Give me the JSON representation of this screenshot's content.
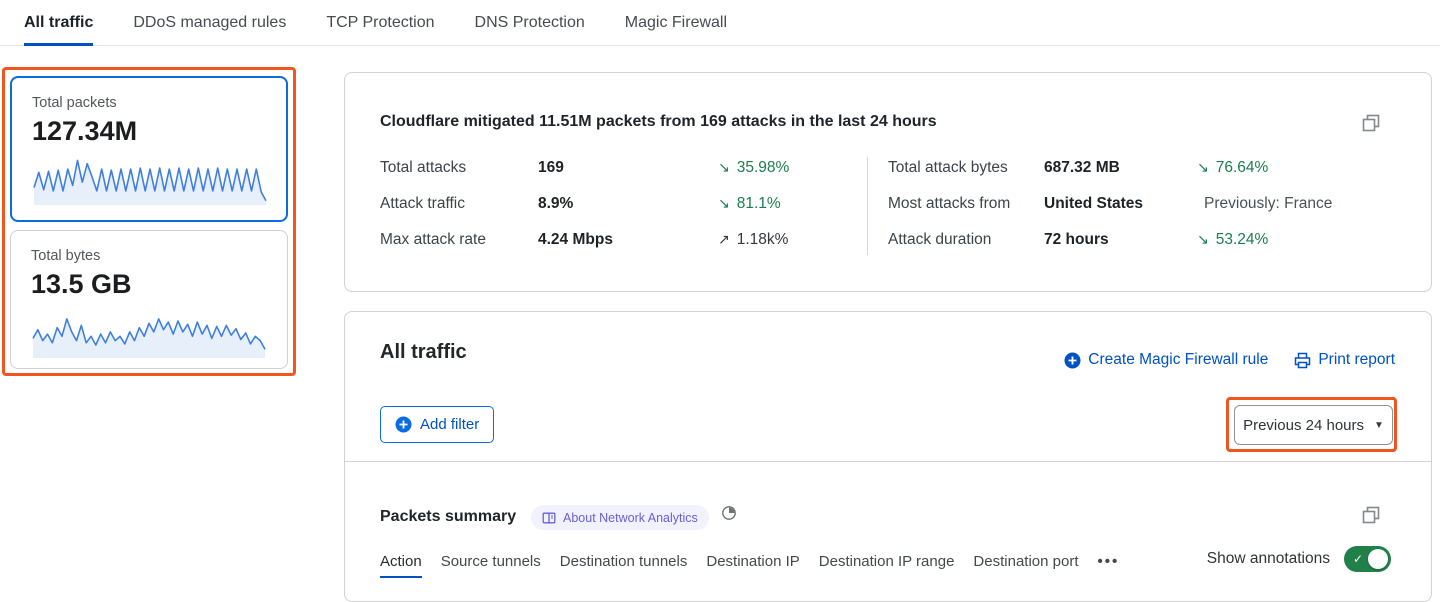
{
  "tabs": [
    {
      "label": "All traffic",
      "active": true
    },
    {
      "label": "DDoS managed rules",
      "active": false
    },
    {
      "label": "TCP Protection",
      "active": false
    },
    {
      "label": "DNS Protection",
      "active": false
    },
    {
      "label": "Magic Firewall",
      "active": false
    }
  ],
  "metric_cards": [
    {
      "label": "Total packets",
      "value": "127.34M",
      "sparkline": [
        30,
        16,
        32,
        15,
        33,
        14,
        33,
        13,
        28,
        5,
        25,
        8,
        20,
        33,
        13,
        33,
        14,
        33,
        13,
        33,
        13,
        33,
        12,
        33,
        13,
        33,
        12,
        33,
        13,
        33,
        12,
        33,
        13,
        33,
        12,
        33,
        13,
        33,
        12,
        33,
        13,
        33,
        13,
        33,
        13,
        33,
        13,
        34,
        42
      ]
    },
    {
      "label": "Total bytes",
      "value": "13.5 GB",
      "sparkline": [
        28,
        20,
        30,
        24,
        32,
        18,
        26,
        10,
        22,
        30,
        16,
        32,
        26,
        34,
        24,
        32,
        22,
        30,
        26,
        33,
        22,
        30,
        18,
        26,
        14,
        22,
        10,
        20,
        13,
        24,
        12,
        22,
        15,
        26,
        13,
        24,
        16,
        28,
        17,
        26,
        16,
        25,
        19,
        29,
        23,
        33,
        26,
        30,
        38
      ]
    }
  ],
  "summary": {
    "headline": "Cloudflare mitigated 11.51M packets from 169 attacks in the last 24 hours",
    "stats_left": [
      {
        "label": "Total attacks",
        "value": "169",
        "arrow": "↘",
        "delta": "35.98%"
      },
      {
        "label": "Attack traffic",
        "value": "8.9%",
        "arrow": "↘",
        "delta": "81.1%"
      },
      {
        "label": "Max attack rate",
        "value": "4.24 Mbps",
        "arrow": "↗",
        "delta": "1.18k%"
      }
    ],
    "stats_right": [
      {
        "label": "Total attack bytes",
        "value": "687.32 MB",
        "arrow": "↘",
        "delta": "76.64%"
      },
      {
        "label": "Most attacks from",
        "value": "United States",
        "arrow": "",
        "delta": "Previously: France"
      },
      {
        "label": "Attack duration",
        "value": "72 hours",
        "arrow": "↘",
        "delta": "53.24%"
      }
    ]
  },
  "traffic_panel": {
    "title": "All traffic",
    "create_rule_link": "Create Magic Firewall rule",
    "print_link": "Print report",
    "add_filter_label": "Add filter",
    "time_range_label": "Previous 24 hours"
  },
  "packets_summary": {
    "title": "Packets summary",
    "badge_label": "About Network Analytics",
    "subtabs": [
      {
        "label": "Action",
        "active": true
      },
      {
        "label": "Source tunnels",
        "active": false
      },
      {
        "label": "Destination tunnels",
        "active": false
      },
      {
        "label": "Destination IP",
        "active": false
      },
      {
        "label": "Destination IP range",
        "active": false
      },
      {
        "label": "Destination port",
        "active": false
      },
      {
        "label": "•••",
        "active": false
      }
    ],
    "show_annotations_label": "Show annotations",
    "annotations_on": true
  },
  "colors": {
    "accent_blue": "#0051c3",
    "selected_card_blue": "#0a6ce0",
    "highlight_orange": "#f0561d",
    "delta_green": "#1b7d4f",
    "toggle_green": "#21804a",
    "badge_purple": "#6a5ed9",
    "sparkline_blue": "#3f7fe0",
    "sparkline_fill": "#e7effb"
  }
}
